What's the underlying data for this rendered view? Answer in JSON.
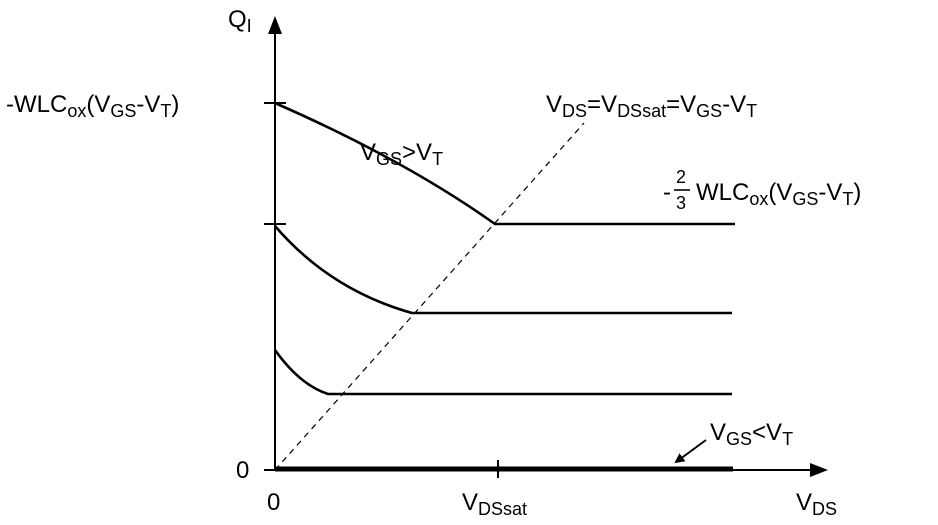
{
  "diagram": {
    "y_axis_label": {
      "main": "Q",
      "sub": "I"
    },
    "x_axis_label": {
      "main": "V",
      "sub": "DS"
    },
    "origin_y_label": "0",
    "origin_x_label": "0",
    "y_tick_label": {
      "p1": "-WLC",
      "s1": "ox",
      "p2": "(V",
      "s2": "GS",
      "p3": "-V",
      "s3": "T",
      "p4": ")"
    },
    "x_tick_label": {
      "main": "V",
      "sub": "DSsat"
    },
    "sat_line_label": {
      "p1": "V",
      "s1": "DS",
      "p2": "=V",
      "s2": "DSsat",
      "p3": "=V",
      "s3": "GS",
      "p4": "-V",
      "s4": "T"
    },
    "upper_curve_label": {
      "p1": "V",
      "s1": "GS",
      "p2": ">V",
      "s2": "T"
    },
    "lower_line_label": {
      "p1": "V",
      "s1": "GS",
      "p2": "<V",
      "s2": "T"
    },
    "sat_value_label": {
      "sign": "-",
      "num": "2",
      "den": "3",
      "p1": "WLC",
      "s1": "ox",
      "p2": "(V",
      "s2": "GS",
      "p3": "-V",
      "s3": "T",
      "p4": ")"
    }
  }
}
